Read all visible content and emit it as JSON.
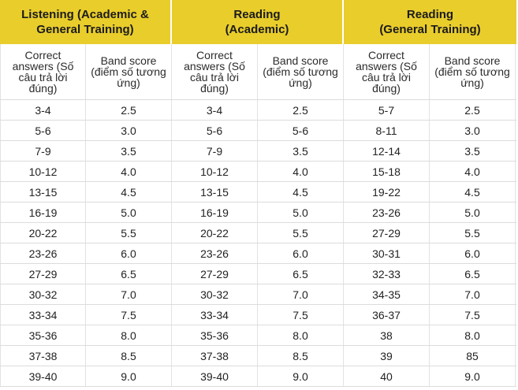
{
  "header": {
    "groups": [
      {
        "label": "Listening (Academic &\nGeneral Training)"
      },
      {
        "label": "Reading\n(Academic)"
      },
      {
        "label": "Reading\n(General Training)"
      }
    ],
    "colors": {
      "header_bg": "#e9cd2b",
      "border": "#dcdcdc"
    }
  },
  "subheader": {
    "columns": [
      "Correct answers (Số câu trả lời đúng)",
      "Band score (điểm số tương ứng)",
      "Correct answers (Số câu trả lời đúng)",
      "Band score (điểm số tương ứng)",
      "Correct answers (Số câu trả lời đúng)",
      "Band score (điểm số tương ứng)"
    ]
  },
  "rows": [
    [
      "3-4",
      "2.5",
      "3-4",
      "2.5",
      "5-7",
      "2.5"
    ],
    [
      "5-6",
      "3.0",
      "5-6",
      "5-6",
      "8-11",
      "3.0"
    ],
    [
      "7-9",
      "3.5",
      "7-9",
      "3.5",
      "12-14",
      "3.5"
    ],
    [
      "10-12",
      "4.0",
      "10-12",
      "4.0",
      "15-18",
      "4.0"
    ],
    [
      "13-15",
      "4.5",
      "13-15",
      "4.5",
      "19-22",
      "4.5"
    ],
    [
      "16-19",
      "5.0",
      "16-19",
      "5.0",
      "23-26",
      "5.0"
    ],
    [
      "20-22",
      "5.5",
      "20-22",
      "5.5",
      "27-29",
      "5.5"
    ],
    [
      "23-26",
      "6.0",
      "23-26",
      "6.0",
      "30-31",
      "6.0"
    ],
    [
      "27-29",
      "6.5",
      "27-29",
      "6.5",
      "32-33",
      "6.5"
    ],
    [
      "30-32",
      "7.0",
      "30-32",
      "7.0",
      "34-35",
      "7.0"
    ],
    [
      "33-34",
      "7.5",
      "33-34",
      "7.5",
      "36-37",
      "7.5"
    ],
    [
      "35-36",
      "8.0",
      "35-36",
      "8.0",
      "38",
      "8.0"
    ],
    [
      "37-38",
      "8.5",
      "37-38",
      "8.5",
      "39",
      "85"
    ],
    [
      "39-40",
      "9.0",
      "39-40",
      "9.0",
      "40",
      "9.0"
    ]
  ]
}
